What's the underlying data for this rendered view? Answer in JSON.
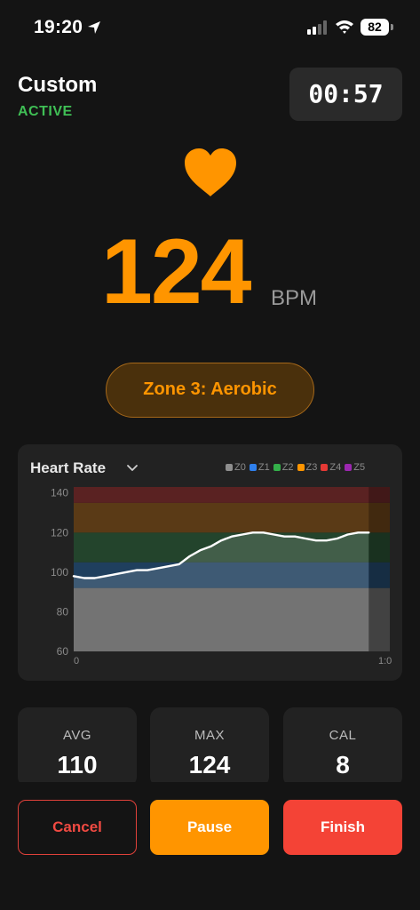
{
  "status_bar": {
    "time": "19:20",
    "battery": "82"
  },
  "header": {
    "title": "Custom",
    "status": "ACTIVE",
    "timer": "00:57"
  },
  "heart_rate": {
    "value": "124",
    "unit": "BPM",
    "zone_label": "Zone 3: Aerobic"
  },
  "chart": {
    "title": "Heart Rate",
    "legend": [
      {
        "label": "Z0",
        "color": "#8e8e8e"
      },
      {
        "label": "Z1",
        "color": "#2f80ed"
      },
      {
        "label": "Z2",
        "color": "#34b04a"
      },
      {
        "label": "Z3",
        "color": "#ff9500"
      },
      {
        "label": "Z4",
        "color": "#e53935"
      },
      {
        "label": "Z5",
        "color": "#9c27b0"
      }
    ]
  },
  "chart_data": {
    "type": "line",
    "title": "Heart Rate",
    "xlabel": "",
    "ylabel": "",
    "x_tick_labels": [
      "0",
      "1:0"
    ],
    "y_ticks": [
      60,
      80,
      100,
      120,
      140
    ],
    "ylim": [
      60,
      140
    ],
    "zones": [
      {
        "name": "Z0",
        "from": 60,
        "to": 92,
        "color": "#5c5c5c"
      },
      {
        "name": "Z1",
        "from": 92,
        "to": 105,
        "color": "#1f3f5e"
      },
      {
        "name": "Z2",
        "from": 105,
        "to": 120,
        "color": "#23442c"
      },
      {
        "name": "Z3",
        "from": 120,
        "to": 135,
        "color": "#5a3a16"
      },
      {
        "name": "Z4",
        "from": 135,
        "to": 143,
        "color": "#5a2222"
      }
    ],
    "series": [
      {
        "x": [
          0,
          2,
          4,
          6,
          8,
          10,
          12,
          14,
          16,
          18,
          20,
          22,
          24,
          26,
          28,
          30,
          32,
          34,
          36,
          38,
          40,
          42,
          44,
          46,
          48,
          50,
          52,
          54,
          56
        ],
        "values": [
          98,
          97,
          97,
          98,
          99,
          100,
          101,
          101,
          102,
          103,
          104,
          108,
          111,
          113,
          116,
          118,
          119,
          120,
          120,
          119,
          118,
          118,
          117,
          116,
          116,
          117,
          119,
          120,
          120
        ]
      }
    ],
    "x_max": 60,
    "grid": false,
    "legend_position": "top-right"
  },
  "stats": [
    {
      "label": "AVG",
      "value": "110"
    },
    {
      "label": "MAX",
      "value": "124"
    },
    {
      "label": "CAL",
      "value": "8"
    }
  ],
  "actions": {
    "cancel": "Cancel",
    "pause": "Pause",
    "finish": "Finish"
  }
}
